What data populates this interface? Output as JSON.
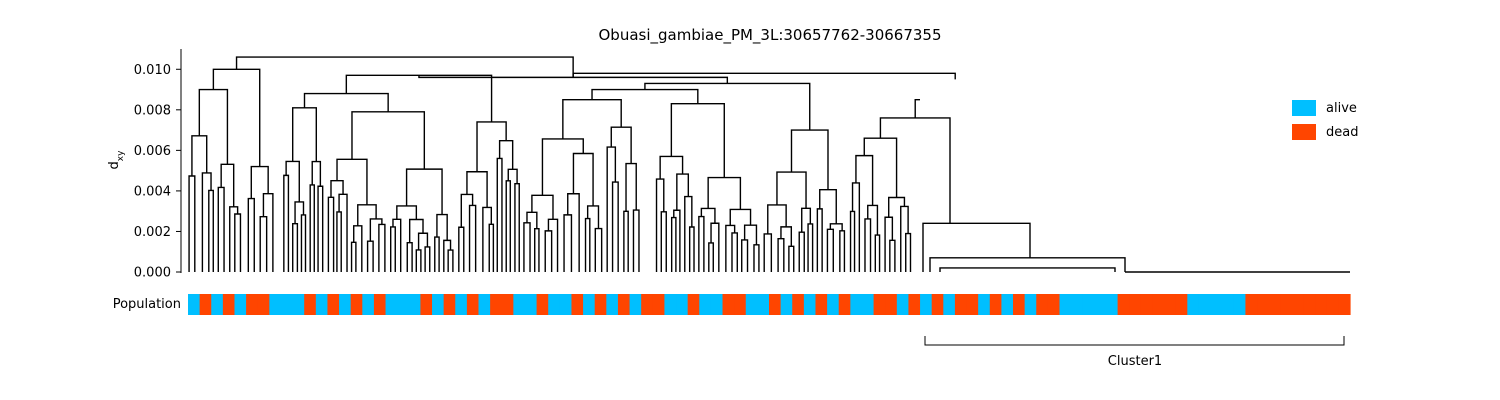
{
  "chart_data": {
    "type": "dendrogram",
    "title": "Obuasi_gambiae_PM_3L:30657762-30667355",
    "ylabel": "d",
    "ylabel_sub": "xy",
    "ylim": [
      0,
      0.011
    ],
    "yticks": [
      "0.000",
      "0.002",
      "0.004",
      "0.006",
      "0.008",
      "0.010"
    ],
    "yticks_values": [
      0,
      0.002,
      0.004,
      0.006,
      0.008,
      0.01
    ],
    "grid": false,
    "legend_placement": "right",
    "population_label": "Population",
    "legend": [
      {
        "label": "alive",
        "color": "#00bfff"
      },
      {
        "label": "dead",
        "color": "#ff4500"
      }
    ],
    "population_bar_pattern": [
      "alive",
      "dead",
      "alive",
      "dead",
      "alive",
      "dead",
      "dead",
      "alive",
      "alive",
      "alive",
      "dead",
      "alive",
      "dead",
      "alive",
      "dead",
      "alive",
      "dead",
      "alive",
      "alive",
      "alive",
      "dead",
      "alive",
      "dead",
      "alive",
      "dead",
      "alive",
      "dead",
      "dead",
      "alive",
      "alive",
      "dead",
      "alive",
      "alive",
      "dead",
      "alive",
      "dead",
      "alive",
      "dead",
      "alive",
      "dead",
      "dead",
      "alive",
      "alive",
      "dead",
      "alive",
      "alive",
      "dead",
      "dead",
      "alive",
      "alive",
      "dead",
      "alive",
      "dead",
      "alive",
      "dead",
      "alive",
      "dead",
      "alive",
      "alive",
      "dead",
      "dead",
      "alive",
      "dead",
      "alive",
      "dead",
      "alive",
      "dead",
      "dead",
      "alive",
      "dead",
      "alive",
      "dead",
      "alive",
      "dead",
      "dead",
      "alive",
      "alive",
      "alive",
      "alive",
      "alive",
      "dead",
      "dead",
      "dead",
      "dead",
      "dead",
      "dead",
      "alive",
      "alive",
      "alive",
      "alive",
      "alive",
      "dead",
      "dead",
      "dead",
      "dead",
      "dead",
      "dead",
      "dead",
      "dead",
      "dead"
    ],
    "major_merges": [
      {
        "label": "root-left",
        "height": 0.0106
      },
      {
        "label": "root",
        "height": 0.0103
      },
      {
        "label": "cluster-split",
        "height": 0.0095
      },
      {
        "label": "cluster1-top",
        "height": 0.0076
      }
    ],
    "annotation": {
      "label": "Cluster1"
    },
    "colors": {
      "alive": "#00bfff",
      "dead": "#ff4500",
      "link": "#000000"
    }
  }
}
